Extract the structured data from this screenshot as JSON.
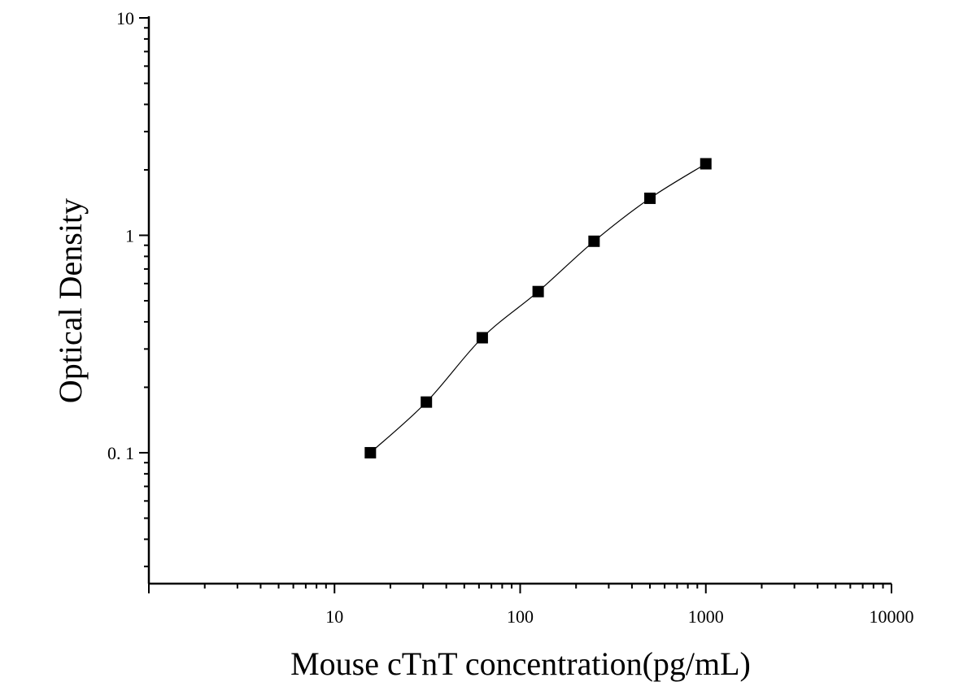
{
  "chart_data": {
    "type": "scatter",
    "title": "",
    "xlabel": "Mouse cTnT concentration(pg/mL)",
    "ylabel": "Optical Density",
    "x_scale": "log",
    "y_scale": "log",
    "xlim": [
      1,
      10000
    ],
    "ylim": [
      0.025,
      10
    ],
    "x_ticks": [
      {
        "value": 10,
        "label": "10"
      },
      {
        "value": 100,
        "label": "100"
      },
      {
        "value": 1000,
        "label": "1000"
      },
      {
        "value": 10000,
        "label": "10000"
      }
    ],
    "y_ticks": [
      {
        "value": 0.1,
        "label": "0. 1"
      },
      {
        "value": 1,
        "label": "1"
      },
      {
        "value": 10,
        "label": "10"
      }
    ],
    "grid": false,
    "legend": "none",
    "series": [
      {
        "marker": "square",
        "x": [
          15.6,
          31.25,
          62.5,
          125,
          250,
          500,
          1000
        ],
        "y": [
          0.1,
          0.171,
          0.338,
          0.551,
          0.939,
          1.48,
          2.133
        ]
      }
    ],
    "fit_curve": true,
    "colors": {
      "axis": "#000000",
      "marker": "#000000",
      "curve": "#000000"
    }
  }
}
